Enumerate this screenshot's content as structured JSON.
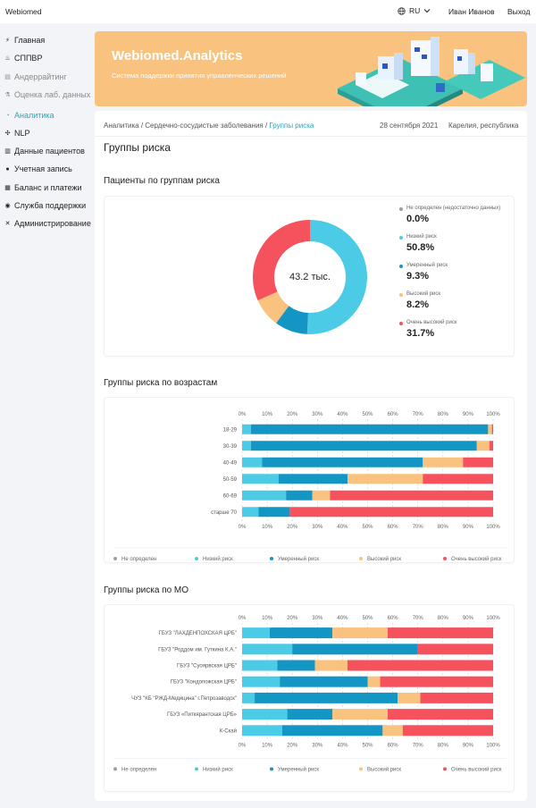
{
  "topbar": {
    "brand": "Webiomed",
    "lang": "RU",
    "user": "Иван Иванов",
    "logout": "Выход"
  },
  "sidebar": {
    "items": [
      {
        "label": "Главная",
        "icon": "bolt-icon",
        "state": "normal"
      },
      {
        "label": "СППВР",
        "icon": "fire-icon",
        "state": "normal"
      },
      {
        "label": "Андеррайтинг",
        "icon": "document-icon",
        "state": "muted"
      },
      {
        "label": "Оценка лаб. данных",
        "icon": "flask-icon",
        "state": "muted"
      },
      {
        "label": "Аналитика",
        "icon": "chart-icon",
        "state": "active"
      },
      {
        "label": "NLP",
        "icon": "nodes-icon",
        "state": "normal"
      },
      {
        "label": "Данные пациентов",
        "icon": "clipboard-icon",
        "state": "normal"
      },
      {
        "label": "Учетная запись",
        "icon": "user-icon",
        "state": "normal"
      },
      {
        "label": "Баланс и платежи",
        "icon": "wallet-icon",
        "state": "normal"
      },
      {
        "label": "Служба поддержки",
        "icon": "support-icon",
        "state": "normal"
      },
      {
        "label": "Администрирование",
        "icon": "tools-icon",
        "state": "normal"
      }
    ]
  },
  "banner": {
    "title": "Webiomed.Analytics",
    "subtitle": "Система поддержки принятия управленческих решений"
  },
  "breadcrumb": {
    "part1": "Аналитика",
    "part2": "Сердечно-сосудистые заболевания",
    "current": "Группы риска",
    "sep": " / "
  },
  "date": "28 сентября 2021",
  "region": "Карелия, республика",
  "page_title": "Группы риска",
  "colors": {
    "undefined": "#9e9e9e",
    "low": "#4ccbe6",
    "moderate": "#1396c4",
    "high": "#f9c27e",
    "very_high": "#f6525d"
  },
  "legend_labels": [
    "Не определен",
    "Низкий риск",
    "Умеренный риск",
    "Высокий риск",
    "Очень высокий риск"
  ],
  "chart_data": [
    {
      "type": "pie",
      "title": "Пациенты по группам риска",
      "center_label": "43.2 тыс.",
      "slices": [
        {
          "name": "Не определен (недостаточно данных)",
          "value": 0.0,
          "label": "0.0%"
        },
        {
          "name": "Низкий риск",
          "value": 50.8,
          "label": "50.8%"
        },
        {
          "name": "Умеренный риск",
          "value": 9.3,
          "label": "9.3%"
        },
        {
          "name": "Высокий риск",
          "value": 8.2,
          "label": "8.2%"
        },
        {
          "name": "Очень высокий риск",
          "value": 31.7,
          "label": "31.7%"
        }
      ]
    },
    {
      "type": "bar",
      "orientation": "horizontal-stacked",
      "title": "Группы риска по возрастам",
      "ticks": [
        "0%",
        "10%",
        "20%",
        "30%",
        "40%",
        "50%",
        "60%",
        "70%",
        "80%",
        "90%",
        "100%"
      ],
      "xlim": [
        0,
        100
      ],
      "categories": [
        "18-29",
        "30-39",
        "40-49",
        "50-59",
        "60-69",
        "старше 70"
      ],
      "series": [
        {
          "name": "Не определен",
          "values": [
            0,
            0,
            0,
            0,
            0,
            0
          ]
        },
        {
          "name": "Низкий риск",
          "values": [
            3.5,
            3.5,
            8,
            14.5,
            17.5,
            6.5
          ]
        },
        {
          "name": "Умеренный риск",
          "values": [
            94.5,
            90,
            64,
            27.5,
            10.5,
            12.5
          ]
        },
        {
          "name": "Высокий риск",
          "values": [
            1.5,
            5,
            16,
            30,
            7,
            0
          ]
        },
        {
          "name": "Очень высокий риск",
          "values": [
            0.5,
            1.5,
            12,
            28,
            65,
            81
          ]
        }
      ]
    },
    {
      "type": "bar",
      "orientation": "horizontal-stacked",
      "title": "Группы риска по МО",
      "ticks": [
        "0%",
        "10%",
        "20%",
        "30%",
        "40%",
        "50%",
        "60%",
        "70%",
        "80%",
        "90%",
        "100%"
      ],
      "xlim": [
        0,
        100
      ],
      "categories": [
        "ГБУЗ \"ЛАХДЕНПОХСКАЯ ЦРБ\"",
        "ГБУЗ \"Роддом им. Гуткина К.А.\"",
        "ГБУЗ \"Суоярвская ЦРБ\"",
        "ГБУЗ \"Кондопожская ЦРБ\"",
        "ЧУЗ \"КБ \"РЖД-Медицина\" г.Петрозаводск\"",
        "ГБУЗ «Питкярантская ЦРБ»",
        "К-Скай"
      ],
      "series": [
        {
          "name": "Не определен",
          "values": [
            0,
            0,
            0,
            0,
            0,
            0,
            0
          ]
        },
        {
          "name": "Низкий риск",
          "values": [
            11,
            20,
            14,
            15,
            5,
            18,
            16
          ]
        },
        {
          "name": "Умеренный риск",
          "values": [
            25,
            50,
            15,
            35,
            57,
            18,
            40
          ]
        },
        {
          "name": "Высокий риск",
          "values": [
            22,
            0,
            13,
            5,
            9,
            22,
            8
          ]
        },
        {
          "name": "Очень высокий риск",
          "values": [
            42,
            30,
            58,
            45,
            29,
            42,
            36
          ]
        }
      ]
    }
  ]
}
